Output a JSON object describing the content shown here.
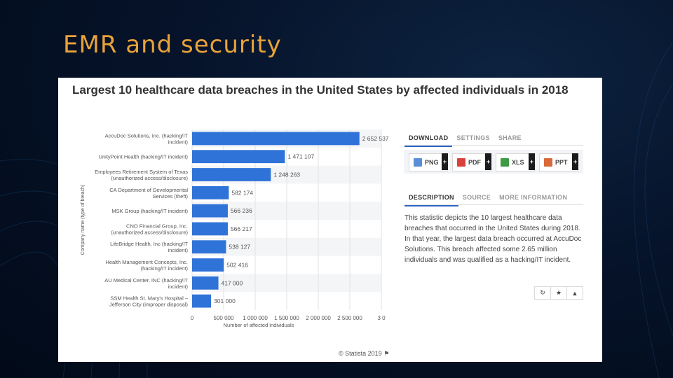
{
  "slide": {
    "title": "EMR and security"
  },
  "chart_data": {
    "type": "bar",
    "orientation": "horizontal",
    "title": "Largest 10 healthcare data breaches in the United States by affected individuals in 2018",
    "xlabel": "Number of affected individuals",
    "ylabel": "Company name (type of breach)",
    "xlim": [
      0,
      3000000
    ],
    "x_ticks": [
      "0",
      "500 000",
      "1 000 000",
      "1 500 000",
      "2 000 000",
      "2 500 000",
      "3 0"
    ],
    "categories": [
      [
        "AccuDoc Solutions, Inc. (hacking/IT",
        "incident)"
      ],
      [
        "UnityPoint Health (hacking/IT incident)"
      ],
      [
        "Employees Retirement System of Texas",
        "(unauthorized access/disclosure)"
      ],
      [
        "CA Department of Developmental",
        "Services (theft)"
      ],
      [
        "MSK Group (hacking/IT incident)"
      ],
      [
        "CNO Financial Group, Inc.",
        "(unauthorized access/disclosure)"
      ],
      [
        "LifeBridge Health, Inc (hacking/IT",
        "incident)"
      ],
      [
        "Health Management Concepts, Inc.",
        "(hacking/IT incident)"
      ],
      [
        "AU Medical Center, INC (hacking/IT",
        "incident)"
      ],
      [
        "SSM Health St. Mary's Hospital –",
        "Jefferson City (improper disposal)"
      ]
    ],
    "values": [
      2652537,
      1471107,
      1248263,
      582174,
      566236,
      566217,
      538127,
      502416,
      417000,
      301000
    ],
    "value_labels": [
      "2 652 537",
      "1 471 107",
      "1 248 263",
      "582 174",
      "566 236",
      "566 217",
      "538 127",
      "502 416",
      "417 000",
      "301 000"
    ],
    "bar_color": "#2f73d8",
    "grid": true,
    "credit": "© Statista 2019"
  },
  "download_tabs": [
    "DOWNLOAD",
    "SETTINGS",
    "SHARE"
  ],
  "download_buttons": [
    {
      "label": "PNG",
      "icon": "png-file-icon",
      "color": "#5a8fd8"
    },
    {
      "label": "PDF",
      "icon": "pdf-file-icon",
      "color": "#d9413a"
    },
    {
      "label": "XLS",
      "icon": "xls-file-icon",
      "color": "#3d9b45"
    },
    {
      "label": "PPT",
      "icon": "ppt-file-icon",
      "color": "#d9693a"
    }
  ],
  "info_tabs": [
    "DESCRIPTION",
    "SOURCE",
    "MORE INFORMATION"
  ],
  "description": "This statistic depicts the 10 largest healthcare data breaches that occurred in the United States during 2018. In that year, the largest data breach occurred at AccuDoc Solutions. This breach affected some 2.65 million individuals and was qualified as a hacking/IT incident.",
  "action_icons": [
    "refresh-icon",
    "star-icon",
    "bell-icon"
  ]
}
